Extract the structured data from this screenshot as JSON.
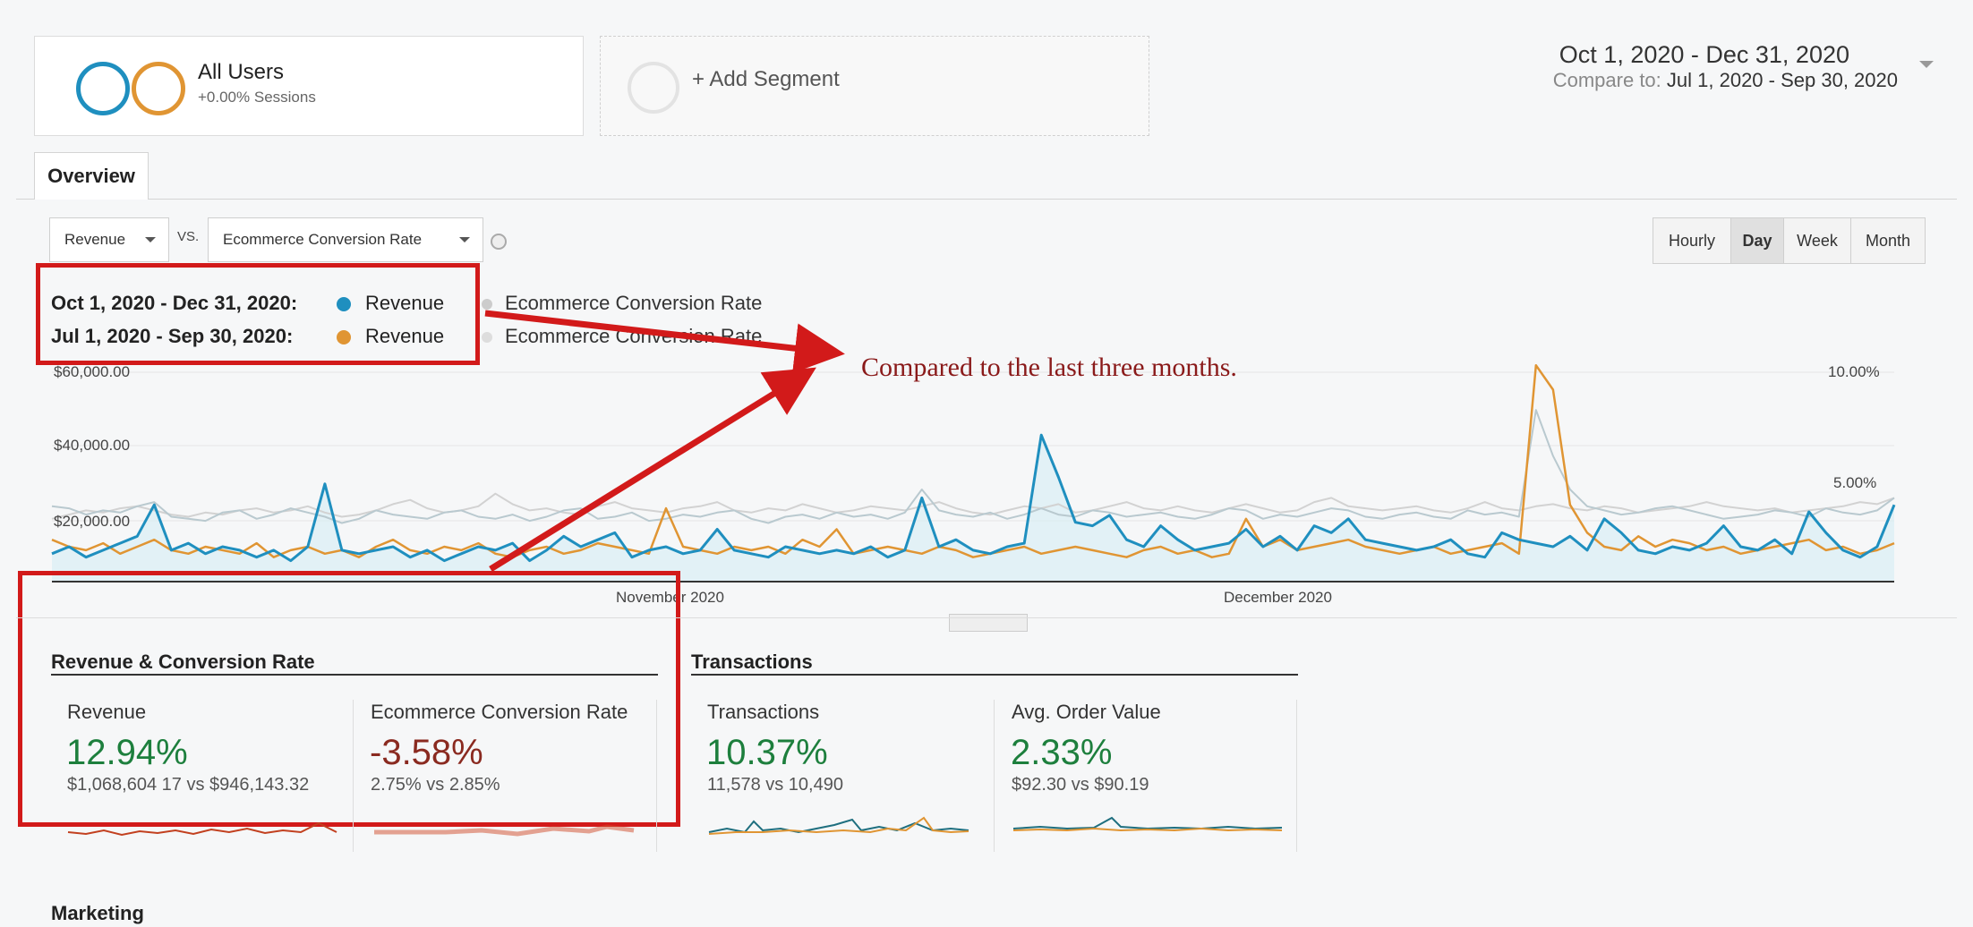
{
  "segments": {
    "all_users": {
      "title": "All Users",
      "subtitle": "+0.00% Sessions"
    },
    "add_segment": "+ Add Segment"
  },
  "date_range": {
    "main": "Oct 1, 2020 - Dec 31, 2020",
    "compare_label": "Compare to:",
    "compare_value": "Jul 1, 2020 - Sep 30, 2020"
  },
  "tabs": {
    "overview": "Overview"
  },
  "controls": {
    "metric1": "Revenue",
    "vs": "VS.",
    "metric2": "Ecommerce Conversion Rate",
    "granularity": [
      "Hourly",
      "Day",
      "Week",
      "Month"
    ],
    "active_granularity": "Day"
  },
  "legend": {
    "row1": {
      "range": "Oct 1, 2020 - Dec 31, 2020:",
      "metric": "Revenue",
      "metric2": "Ecommerce Conversion Rate"
    },
    "row2": {
      "range": "Jul 1, 2020 - Sep 30, 2020:",
      "metric": "Revenue",
      "metric2": "Ecommerce Conversion Rate"
    }
  },
  "colors": {
    "current": "#1f8fbf",
    "previous": "#e09533",
    "conv_current": "#b9c9cf",
    "conv_previous": "#d2d2d2",
    "annotation": "#d21a1a"
  },
  "annotation": "Compared to the last three months.",
  "chart_data": {
    "type": "line",
    "left_axis_ticks": [
      "$60,000.00",
      "$40,000.00",
      "$20,000.00"
    ],
    "right_axis_ticks": [
      "10.00%",
      "5.00%"
    ],
    "x_labels": [
      "November 2020",
      "December 2020"
    ],
    "series": [
      {
        "name": "Revenue",
        "range": "Oct 1, 2020 - Dec 31, 2020",
        "values": [
          8000,
          10000,
          7000,
          9000,
          11000,
          13000,
          22000,
          9000,
          11000,
          8000,
          10000,
          9000,
          7000,
          9000,
          6000,
          10000,
          28000,
          9000,
          8000,
          9000,
          10000,
          7000,
          9000,
          6000,
          8000,
          10000,
          9000,
          11000,
          6000,
          9000,
          13000,
          10000,
          12000,
          14000,
          7000,
          9000,
          10000,
          8000,
          9000,
          15000,
          9000,
          8000,
          7000,
          10000,
          9000,
          8000,
          9000,
          8000,
          10000,
          7000,
          9000,
          24000,
          10000,
          12000,
          9000,
          8000,
          10000,
          11000,
          42000,
          30000,
          17000,
          16000,
          19000,
          12000,
          10000,
          16000,
          12000,
          9000,
          10000,
          11000,
          15000,
          10000,
          13000,
          9000,
          16000,
          14000,
          18000,
          12000,
          11000,
          10000,
          9000,
          10000,
          12000,
          8000,
          7000,
          14000,
          12000,
          11000,
          10000,
          13000,
          9000,
          18000,
          14000,
          9000,
          8000,
          10000,
          9000,
          11000,
          16000,
          10000,
          9000,
          12000,
          8000,
          20000,
          14000,
          9000,
          7000,
          10000,
          22000
        ]
      },
      {
        "name": "Revenue",
        "range": "Jul 1, 2020 - Sep 30, 2020",
        "values": [
          12000,
          10000,
          9000,
          11000,
          8000,
          10000,
          12000,
          9000,
          8000,
          10000,
          9000,
          8000,
          11000,
          7000,
          9000,
          10000,
          8000,
          9000,
          7000,
          10000,
          12000,
          9000,
          8000,
          10000,
          9000,
          11000,
          8000,
          7000,
          9000,
          10000,
          8000,
          9000,
          11000,
          10000,
          9000,
          8000,
          21000,
          10000,
          9000,
          8000,
          10000,
          9000,
          10000,
          8000,
          12000,
          10000,
          15000,
          8000,
          9000,
          10000,
          9000,
          8000,
          10000,
          9000,
          7000,
          8000,
          9000,
          10000,
          8000,
          9000,
          10000,
          9000,
          8000,
          7000,
          9000,
          10000,
          8000,
          9000,
          7000,
          8000,
          18000,
          10000,
          12000,
          9000,
          10000,
          11000,
          12000,
          10000,
          9000,
          8000,
          9000,
          10000,
          8000,
          9000,
          10000,
          11000,
          8000,
          62000,
          55000,
          22000,
          14000,
          10000,
          9000,
          13000,
          10000,
          12000,
          11000,
          9000,
          10000,
          8000,
          9000,
          10000,
          11000,
          12000,
          9000,
          10000,
          8000,
          9000,
          11000
        ]
      },
      {
        "name": "Ecommerce Conversion Rate",
        "range": "Oct 1, 2020 - Dec 31, 2020",
        "values": [
          3.6,
          3.5,
          3.2,
          3.4,
          3.3,
          3.6,
          3.8,
          3.1,
          3.0,
          2.9,
          3.3,
          3.4,
          3.0,
          3.2,
          3.5,
          3.3,
          3.1,
          2.8,
          3.0,
          3.4,
          3.2,
          3.1,
          3.0,
          3.3,
          3.4,
          3.1,
          3.0,
          3.2,
          2.9,
          3.1,
          3.4,
          3.5,
          3.0,
          3.1,
          3.3,
          2.9,
          3.0,
          3.2,
          3.1,
          3.3,
          3.4,
          3.0,
          2.8,
          3.1,
          3.2,
          3.0,
          3.3,
          3.1,
          3.2,
          3.0,
          3.3,
          4.4,
          3.4,
          3.2,
          3.1,
          3.3,
          3.0,
          3.2,
          3.5,
          3.2,
          3.1,
          3.4,
          3.3,
          3.1,
          3.2,
          3.3,
          3.1,
          3.0,
          3.2,
          3.5,
          3.4,
          3.0,
          3.2,
          3.1,
          3.3,
          3.5,
          3.4,
          3.1,
          3.0,
          3.2,
          3.3,
          3.1,
          3.0,
          3.4,
          3.2,
          3.3,
          3.1,
          8.2,
          6.0,
          4.4,
          3.6,
          3.4,
          3.2,
          3.3,
          3.5,
          3.6,
          3.4,
          3.2,
          3.0,
          3.1,
          3.2,
          3.4,
          3.3,
          3.1,
          3.5,
          3.3,
          3.2,
          3.4,
          4.0
        ]
      },
      {
        "name": "Ecommerce Conversion Rate",
        "range": "Jul 1, 2020 - Sep 30, 2020",
        "values": [
          3.0,
          3.2,
          3.4,
          3.3,
          3.5,
          3.6,
          3.4,
          3.2,
          3.1,
          3.3,
          3.2,
          3.4,
          3.5,
          3.3,
          3.4,
          3.6,
          3.3,
          3.1,
          3.2,
          3.4,
          3.7,
          3.9,
          3.5,
          3.3,
          3.4,
          3.6,
          4.2,
          3.7,
          3.4,
          3.5,
          3.3,
          3.2,
          3.6,
          3.8,
          3.5,
          3.4,
          3.3,
          3.5,
          3.6,
          3.8,
          3.4,
          3.3,
          3.5,
          3.4,
          3.7,
          3.5,
          3.3,
          3.4,
          3.6,
          3.5,
          3.4,
          3.6,
          3.8,
          3.5,
          3.3,
          3.2,
          3.4,
          3.6,
          3.5,
          3.7,
          3.3,
          3.4,
          3.6,
          3.8,
          3.5,
          3.4,
          3.6,
          3.4,
          3.3,
          3.5,
          3.7,
          3.5,
          3.3,
          3.4,
          3.8,
          4.0,
          3.6,
          3.5,
          3.4,
          3.5,
          3.6,
          3.4,
          3.3,
          3.5,
          3.8,
          3.5,
          3.4,
          3.6,
          3.7,
          3.5,
          3.4,
          3.6,
          3.5,
          3.3,
          3.4,
          3.5,
          3.6,
          3.8,
          3.6,
          3.5,
          3.4,
          3.5,
          3.3,
          3.4,
          3.5,
          3.6,
          3.8,
          3.7,
          4.0
        ]
      }
    ]
  },
  "sections": {
    "rev_conv": {
      "title": "Revenue & Conversion Rate",
      "metrics": [
        {
          "name": "Revenue",
          "pct": "12.94%",
          "detail": "$1,068,604 17 vs $946,143.32"
        },
        {
          "name": "Ecommerce Conversion Rate",
          "pct": "-3.58%",
          "detail": "2.75% vs 2.85%"
        }
      ]
    },
    "transactions": {
      "title": "Transactions",
      "metrics": [
        {
          "name": "Transactions",
          "pct": "10.37%",
          "detail": "11,578 vs 10,490"
        },
        {
          "name": "Avg. Order Value",
          "pct": "2.33%",
          "detail": "$92.30 vs $90.19"
        }
      ]
    },
    "marketing": {
      "title": "Marketing"
    }
  }
}
